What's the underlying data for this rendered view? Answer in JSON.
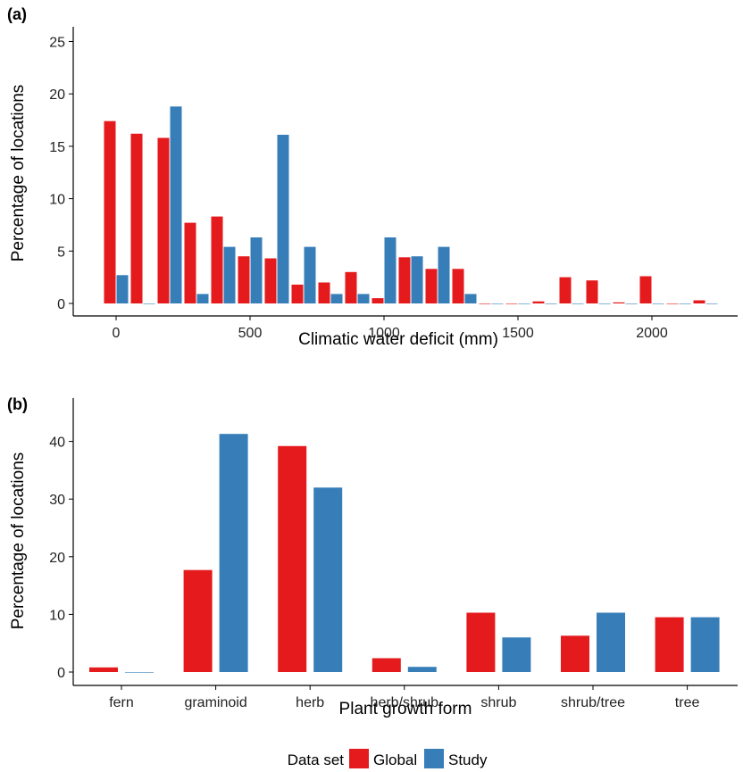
{
  "colors": {
    "global": "#e41a1c",
    "study": "#377eb8"
  },
  "legend": {
    "title": "Data set",
    "items": [
      "Global",
      "Study"
    ]
  },
  "chart_data": [
    {
      "panel_label": "(a)",
      "type": "bar",
      "xlabel": "Climatic water deficit (mm)",
      "ylabel": "Percentage of locations",
      "xlim": [
        -100,
        2300
      ],
      "ylim": [
        0,
        25
      ],
      "xticks": [
        0,
        500,
        1000,
        1500,
        2000
      ],
      "yticks": [
        0,
        5,
        10,
        15,
        20,
        25
      ],
      "bin_width": 100,
      "x": [
        0,
        100,
        200,
        300,
        400,
        500,
        600,
        700,
        800,
        900,
        1000,
        1100,
        1200,
        1300,
        1400,
        1500,
        1600,
        1700,
        1800,
        1900,
        2000,
        2100,
        2200
      ],
      "series": [
        {
          "name": "Global",
          "values": [
            17.4,
            16.2,
            15.8,
            7.7,
            8.3,
            4.5,
            4.3,
            1.8,
            2.0,
            3.0,
            0.5,
            4.4,
            3.3,
            3.3,
            0,
            0,
            0.2,
            2.5,
            2.2,
            0.1,
            2.6,
            0,
            0.3
          ]
        },
        {
          "name": "Study",
          "values": [
            2.7,
            0,
            18.8,
            0.9,
            5.4,
            6.3,
            16.1,
            5.4,
            0.9,
            0.9,
            6.3,
            4.5,
            5.4,
            0.9,
            0,
            0,
            0,
            0,
            0,
            0,
            0,
            0,
            0
          ]
        }
      ],
      "grid": false
    },
    {
      "panel_label": "(b)",
      "type": "bar",
      "xlabel": "Plant growth form",
      "ylabel": "Percentage of locations",
      "ylim": [
        0,
        46
      ],
      "yticks": [
        0,
        10,
        20,
        30,
        40
      ],
      "categories": [
        "fern",
        "graminoid",
        "herb",
        "herb/shrub",
        "shrub",
        "shrub/tree",
        "tree"
      ],
      "series": [
        {
          "name": "Global",
          "values": [
            0.8,
            17.7,
            39.2,
            2.4,
            10.3,
            6.3,
            9.5
          ]
        },
        {
          "name": "Study",
          "values": [
            0,
            41.3,
            32.0,
            0.9,
            6.0,
            10.3,
            9.5
          ]
        }
      ],
      "grid": false
    }
  ]
}
